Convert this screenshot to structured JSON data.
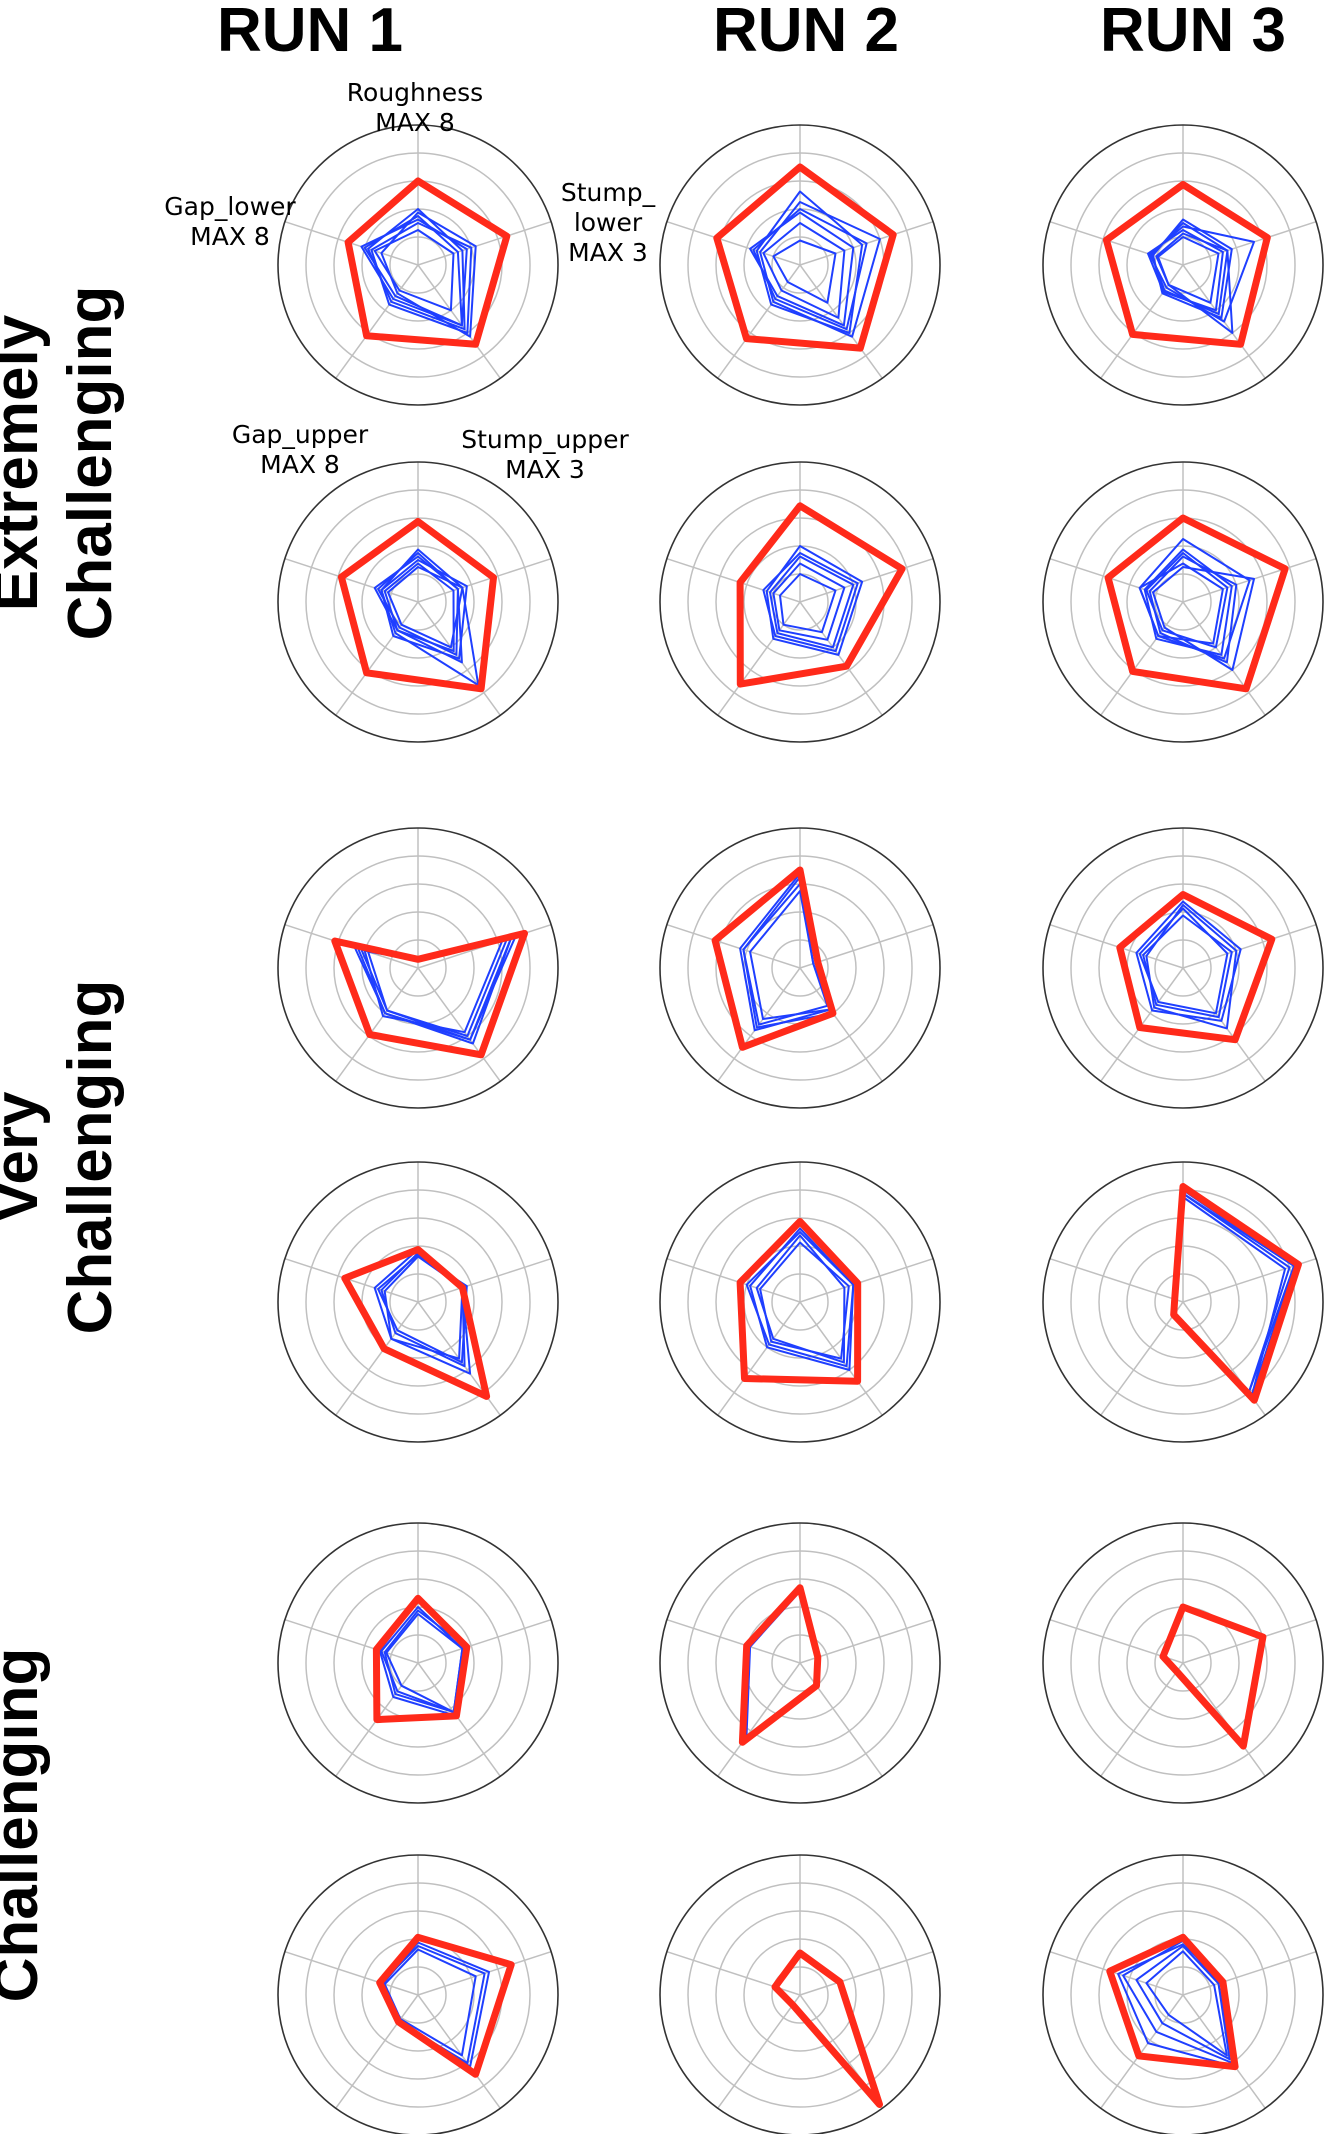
{
  "columns": [
    "RUN 1",
    "RUN 2",
    "RUN 3"
  ],
  "rows": [
    {
      "line1": "Extremely",
      "line2": "Challenging"
    },
    {
      "line1": "Very",
      "line2": "Challenging"
    },
    {
      "line1": "",
      "line2": "Challenging"
    }
  ],
  "axis_labels": {
    "roughness": {
      "name": "Roughness",
      "max": "MAX 8"
    },
    "stump_lower": {
      "name": "Stump_",
      "name2": "lower",
      "max": "MAX 3"
    },
    "stump_upper": {
      "name": "Stump_upper",
      "max": "MAX 3"
    },
    "gap_upper": {
      "name": "Gap_upper",
      "max": "MAX 8"
    },
    "gap_lower": {
      "name": "Gap_lower",
      "max": "MAX 8"
    }
  },
  "colors": {
    "highlight": "#ff2a1a",
    "series": "#1f3fff",
    "grid": "#c0c0c0",
    "frame": "#333333"
  },
  "chart_data": {
    "type": "radar",
    "axes": [
      "Roughness",
      "Stump_lower",
      "Stump_upper",
      "Gap_upper",
      "Gap_lower"
    ],
    "axis_max": [
      8,
      3,
      3,
      8,
      8
    ],
    "grid_rings": 5,
    "panels": [
      {
        "row": 0,
        "col": 0,
        "red": [
          4.8,
          2.0,
          2.1,
          5.0,
          4.2
        ],
        "blue": [
          [
            3.2,
            1.0,
            1.7,
            2.6,
            3.0
          ],
          [
            2.8,
            0.9,
            1.6,
            2.2,
            3.2
          ],
          [
            2.4,
            1.2,
            1.8,
            2.8,
            2.8
          ],
          [
            3.0,
            1.3,
            1.9,
            2.0,
            2.2
          ],
          [
            2.0,
            0.8,
            1.2,
            1.8,
            2.6
          ],
          [
            2.6,
            1.1,
            1.6,
            2.4,
            3.4
          ]
        ]
      },
      {
        "row": 0,
        "col": 1,
        "red": [
          5.6,
          2.1,
          2.2,
          5.2,
          5.0
        ],
        "blue": [
          [
            4.2,
            1.4,
            1.8,
            2.8,
            2.6
          ],
          [
            3.6,
            1.8,
            1.9,
            2.6,
            2.4
          ],
          [
            3.0,
            1.2,
            1.6,
            2.2,
            3.0
          ],
          [
            2.4,
            1.0,
            1.4,
            1.8,
            2.2
          ],
          [
            1.4,
            0.8,
            1.0,
            1.2,
            1.6
          ],
          [
            3.2,
            1.5,
            1.7,
            2.4,
            2.8
          ]
        ]
      },
      {
        "row": 0,
        "col": 2,
        "red": [
          4.6,
          1.9,
          2.1,
          4.9,
          4.6
        ],
        "blue": [
          [
            2.4,
            1.0,
            1.3,
            1.8,
            1.9
          ],
          [
            2.2,
            1.6,
            1.5,
            1.6,
            2.0
          ],
          [
            1.8,
            1.0,
            1.8,
            1.4,
            1.6
          ],
          [
            2.0,
            0.9,
            1.2,
            1.9,
            2.1
          ],
          [
            2.6,
            1.1,
            1.4,
            2.0,
            1.8
          ],
          [
            1.6,
            0.8,
            1.0,
            1.4,
            1.5
          ]
        ]
      },
      {
        "row": 1,
        "col": 0,
        "red": [
          4.6,
          1.7,
          2.3,
          5.0,
          4.6
        ],
        "blue": [
          [
            3.0,
            1.0,
            2.2,
            2.2,
            2.2
          ],
          [
            2.6,
            0.9,
            1.6,
            2.0,
            2.6
          ],
          [
            2.4,
            1.1,
            1.5,
            2.4,
            2.2
          ],
          [
            2.8,
            0.9,
            1.4,
            1.8,
            2.4
          ],
          [
            2.2,
            0.8,
            1.3,
            2.0,
            2.0
          ],
          [
            2.0,
            1.0,
            1.2,
            1.6,
            1.8
          ]
        ]
      },
      {
        "row": 1,
        "col": 1,
        "red": [
          5.5,
          2.3,
          1.7,
          5.8,
          3.6
        ],
        "blue": [
          [
            3.2,
            1.4,
            1.4,
            2.6,
            2.0
          ],
          [
            2.6,
            1.2,
            1.2,
            2.2,
            1.8
          ],
          [
            2.2,
            1.0,
            1.0,
            2.0,
            1.6
          ],
          [
            1.6,
            0.8,
            0.8,
            1.6,
            1.2
          ],
          [
            2.8,
            1.3,
            1.3,
            2.4,
            2.2
          ]
        ]
      },
      {
        "row": 1,
        "col": 2,
        "red": [
          4.8,
          2.3,
          2.3,
          4.9,
          4.5
        ],
        "blue": [
          [
            3.6,
            1.5,
            1.5,
            2.4,
            2.6
          ],
          [
            2.8,
            1.0,
            1.2,
            2.0,
            2.2
          ],
          [
            2.6,
            1.2,
            1.6,
            2.2,
            2.0
          ],
          [
            2.2,
            0.9,
            1.1,
            2.4,
            2.6
          ],
          [
            2.0,
            1.6,
            1.8,
            1.8,
            1.8
          ],
          [
            3.0,
            1.1,
            1.4,
            2.6,
            2.3
          ]
        ]
      },
      {
        "row": 2,
        "col": 0,
        "red": [
          0.5,
          2.4,
          2.3,
          4.7,
          5.0
        ],
        "blue": [
          [
            0.5,
            2.1,
            1.9,
            3.2,
            3.6
          ],
          [
            0.5,
            2.0,
            1.8,
            3.0,
            3.4
          ],
          [
            0.5,
            1.9,
            1.7,
            3.4,
            3.2
          ],
          [
            0.5,
            2.2,
            1.9,
            3.0,
            3.0
          ],
          [
            0.5,
            2.1,
            2.0,
            3.2,
            3.8
          ]
        ]
      },
      {
        "row": 2,
        "col": 1,
        "red": [
          5.6,
          0.4,
          1.2,
          5.6,
          5.1
        ],
        "blue": [
          [
            5.4,
            0.4,
            1.1,
            4.4,
            3.6
          ],
          [
            4.8,
            0.3,
            1.0,
            4.0,
            3.4
          ],
          [
            4.4,
            0.3,
            1.1,
            3.6,
            3.0
          ],
          [
            5.2,
            0.4,
            1.2,
            4.2,
            3.4
          ]
        ]
      },
      {
        "row": 2,
        "col": 2,
        "red": [
          4.2,
          2.0,
          1.9,
          4.2,
          3.8
        ],
        "blue": [
          [
            3.8,
            1.3,
            1.4,
            3.0,
            2.8
          ],
          [
            3.4,
            1.0,
            1.2,
            2.4,
            2.6
          ],
          [
            3.6,
            1.2,
            1.6,
            2.8,
            2.2
          ],
          [
            3.0,
            1.1,
            1.3,
            2.6,
            2.4
          ]
        ]
      },
      {
        "row": 3,
        "col": 0,
        "red": [
          3.0,
          1.0,
          2.5,
          3.3,
          4.4
        ],
        "blue": [
          [
            3.0,
            1.0,
            1.9,
            2.6,
            2.6
          ],
          [
            2.8,
            1.0,
            1.7,
            2.2,
            2.2
          ],
          [
            2.6,
            1.0,
            1.5,
            2.6,
            2.0
          ],
          [
            2.7,
            1.1,
            1.6,
            2.0,
            2.4
          ]
        ]
      },
      {
        "row": 3,
        "col": 1,
        "red": [
          4.6,
          1.3,
          2.1,
          5.4,
          3.6
        ],
        "blue": [
          [
            4.2,
            1.2,
            1.8,
            3.2,
            3.0
          ],
          [
            3.8,
            1.0,
            1.6,
            2.6,
            2.6
          ],
          [
            3.4,
            1.1,
            1.5,
            2.8,
            2.4
          ],
          [
            4.0,
            1.2,
            1.7,
            3.0,
            3.2
          ]
        ]
      },
      {
        "row": 3,
        "col": 2,
        "red": [
          6.6,
          2.6,
          2.6,
          0.9,
          0.5
        ],
        "blue": [
          [
            6.4,
            2.5,
            2.5,
            0.9,
            0.5
          ],
          [
            6.2,
            2.4,
            2.4,
            0.8,
            0.5
          ],
          [
            6.0,
            2.3,
            2.5,
            0.9,
            0.5
          ],
          [
            6.2,
            2.5,
            2.4,
            0.8,
            0.5
          ]
        ]
      },
      {
        "row": 4,
        "col": 0,
        "red": [
          3.7,
          1.1,
          1.4,
          4.0,
          2.5
        ],
        "blue": [
          [
            3.6,
            1.1,
            1.4,
            2.4,
            2.3
          ],
          [
            3.2,
            1.0,
            1.3,
            2.0,
            2.2
          ],
          [
            2.8,
            1.0,
            1.3,
            1.6,
            1.9
          ],
          [
            3.0,
            1.1,
            1.3,
            2.2,
            2.0
          ]
        ]
      },
      {
        "row": 4,
        "col": 1,
        "red": [
          4.3,
          0.4,
          0.6,
          5.6,
          3.2
        ],
        "blue": [
          [
            4.2,
            0.4,
            0.6,
            5.4,
            3.1
          ],
          [
            4.1,
            0.4,
            0.6,
            5.2,
            3.0
          ]
        ]
      },
      {
        "row": 4,
        "col": 2,
        "red": [
          3.2,
          1.8,
          2.2,
          0.6,
          1.2
        ],
        "blue": [
          [
            3.2,
            1.8,
            2.2,
            0.6,
            1.2
          ]
        ]
      },
      {
        "row": 5,
        "col": 0,
        "red": [
          3.3,
          2.1,
          2.1,
          1.9,
          2.3
        ],
        "blue": [
          [
            3.0,
            1.6,
            1.9,
            1.8,
            2.1
          ],
          [
            2.6,
            1.3,
            1.6,
            1.7,
            2.0
          ],
          [
            2.8,
            1.5,
            1.8,
            1.9,
            2.2
          ]
        ]
      },
      {
        "row": 5,
        "col": 1,
        "red": [
          2.4,
          0.9,
          2.9,
          0.7,
          1.5
        ],
        "blue": [
          [
            2.4,
            0.9,
            2.9,
            0.7,
            1.5
          ]
        ]
      },
      {
        "row": 5,
        "col": 2,
        "red": [
          3.3,
          0.9,
          1.9,
          4.3,
          4.4
        ],
        "blue": [
          [
            3.1,
            0.8,
            1.8,
            2.6,
            3.6
          ],
          [
            2.8,
            0.8,
            1.7,
            2.0,
            2.8
          ],
          [
            2.5,
            0.7,
            1.6,
            1.4,
            2.2
          ],
          [
            2.9,
            0.9,
            1.9,
            3.4,
            3.9
          ]
        ]
      }
    ]
  }
}
